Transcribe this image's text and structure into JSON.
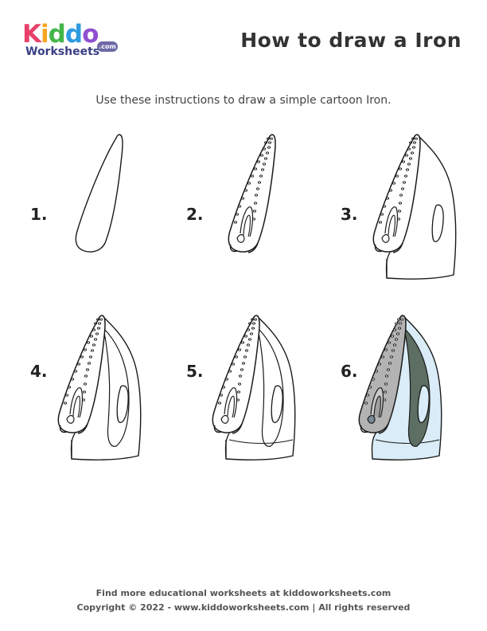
{
  "logo": {
    "brand_letters": [
      {
        "char": "K",
        "color": "#e8416b"
      },
      {
        "char": "i",
        "color": "#f5a623"
      },
      {
        "char": "d",
        "color": "#43b649"
      },
      {
        "char": "d",
        "color": "#2f9be0"
      },
      {
        "char": "o",
        "color": "#8f4fd1"
      }
    ],
    "sub": "Worksheets",
    "com": ".com"
  },
  "header": {
    "title": "How to draw a Iron",
    "subtitle": "Use these instructions to draw a simple cartoon Iron."
  },
  "steps": [
    {
      "label": "1.",
      "stage": 1
    },
    {
      "label": "2.",
      "stage": 2
    },
    {
      "label": "3.",
      "stage": 3
    },
    {
      "label": "4.",
      "stage": 4
    },
    {
      "label": "5.",
      "stage": 5
    },
    {
      "label": "6.",
      "stage": 6
    }
  ],
  "colors": {
    "outline": "#1a1a1a",
    "soleplate_fill": "#b3b3b3",
    "body_fill": "#d9ecf7",
    "handle_fill": "#5d6e63"
  },
  "footer": {
    "line1": "Find more educational worksheets at kiddoworksheets.com",
    "line2": "Copyright © 2022 - www.kiddoworksheets.com  |  All rights reserved"
  }
}
